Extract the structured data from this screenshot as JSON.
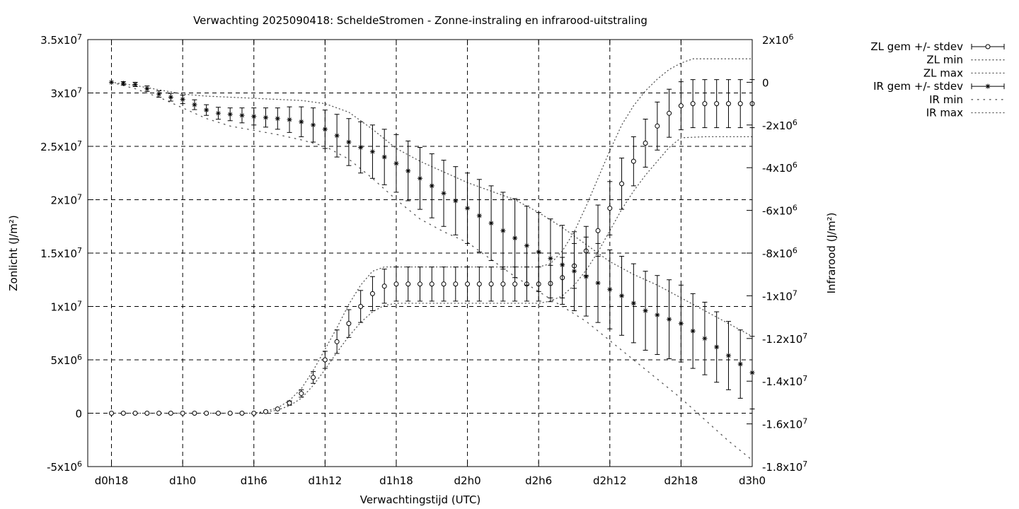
{
  "chart_data": {
    "type": "line",
    "title": "Verwachting 2025090418: ScheldeStromen - Zonne-instraling en infrarood-uitstraling",
    "xlabel": "Verwachtingstijd (UTC)",
    "ylabel_left": "Zonlicht (J/m²)",
    "ylabel_right": "Infrarood (J/m²)",
    "x_unit": "forecast hour since d0h0",
    "xlim": [
      16,
      72
    ],
    "x_ticks": [
      {
        "x": 18,
        "label": "d0h18"
      },
      {
        "x": 24,
        "label": "d1h0"
      },
      {
        "x": 30,
        "label": "d1h6"
      },
      {
        "x": 36,
        "label": "d1h12"
      },
      {
        "x": 42,
        "label": "d1h18"
      },
      {
        "x": 48,
        "label": "d2h0"
      },
      {
        "x": 54,
        "label": "d2h6"
      },
      {
        "x": 60,
        "label": "d2h12"
      },
      {
        "x": 66,
        "label": "d2h18"
      },
      {
        "x": 72,
        "label": "d3h0"
      }
    ],
    "ylim_left": [
      -5000000,
      35000000
    ],
    "y_ticks_left": [
      {
        "v": -5000000,
        "base": "-5x10",
        "exp": "6"
      },
      {
        "v": 0,
        "base": "0",
        "exp": ""
      },
      {
        "v": 5000000,
        "base": "5x10",
        "exp": "6"
      },
      {
        "v": 10000000,
        "base": "1x10",
        "exp": "7"
      },
      {
        "v": 15000000,
        "base": "1.5x10",
        "exp": "7"
      },
      {
        "v": 20000000,
        "base": "2x10",
        "exp": "7"
      },
      {
        "v": 25000000,
        "base": "2.5x10",
        "exp": "7"
      },
      {
        "v": 30000000,
        "base": "3x10",
        "exp": "7"
      },
      {
        "v": 35000000,
        "base": "3.5x10",
        "exp": "7"
      }
    ],
    "ylim_right": [
      -18000000,
      2000000
    ],
    "y_ticks_right": [
      {
        "v": 2000000,
        "base": "2x10",
        "exp": "6"
      },
      {
        "v": 0,
        "base": "0",
        "exp": ""
      },
      {
        "v": -2000000,
        "base": "-2x10",
        "exp": "6"
      },
      {
        "v": -4000000,
        "base": "-4x10",
        "exp": "6"
      },
      {
        "v": -6000000,
        "base": "-6x10",
        "exp": "6"
      },
      {
        "v": -8000000,
        "base": "-8x10",
        "exp": "6"
      },
      {
        "v": -10000000,
        "base": "-1x10",
        "exp": "7"
      },
      {
        "v": -12000000,
        "base": "-1.2x10",
        "exp": "7"
      },
      {
        "v": -14000000,
        "base": "-1.4x10",
        "exp": "7"
      },
      {
        "v": -16000000,
        "base": "-1.6x10",
        "exp": "7"
      },
      {
        "v": -18000000,
        "base": "-1.8x10",
        "exp": "7"
      }
    ],
    "grid": true,
    "legend_position": "outside-top-right",
    "legend": [
      {
        "name": "ZL gem +/- stdev",
        "style": "errorbar-circle"
      },
      {
        "name": "ZL min",
        "style": "dotted"
      },
      {
        "name": "ZL max",
        "style": "dotted"
      },
      {
        "name": "IR gem +/- stdev",
        "style": "errorbar-star"
      },
      {
        "name": "IR min",
        "style": "dotted-sparse"
      },
      {
        "name": "IR max",
        "style": "dotted"
      }
    ],
    "series": [
      {
        "name": "ZL gem +/- stdev",
        "axis": "left",
        "marker": "circle",
        "x": [
          18,
          19,
          20,
          21,
          22,
          23,
          24,
          25,
          26,
          27,
          28,
          29,
          30,
          31,
          32,
          33,
          34,
          35,
          36,
          37,
          38,
          39,
          40,
          41,
          42,
          43,
          44,
          45,
          46,
          47,
          48,
          49,
          50,
          51,
          52,
          53,
          54,
          55,
          56,
          57,
          58,
          59,
          60,
          61,
          62,
          63,
          64,
          65,
          66,
          67,
          68,
          69,
          70,
          71,
          72
        ],
        "y": [
          0,
          0,
          0,
          0,
          0,
          0,
          0,
          0,
          0,
          0,
          0,
          0,
          0,
          150000,
          400000,
          950000,
          1850000,
          3350000,
          5000000,
          6700000,
          8400000,
          10000000,
          11200000,
          11900000,
          12100000,
          12100000,
          12100000,
          12100000,
          12100000,
          12100000,
          12100000,
          12100000,
          12100000,
          12100000,
          12100000,
          12100000,
          12100000,
          12150000,
          12700000,
          13800000,
          15200000,
          17100000,
          19200000,
          21500000,
          23600000,
          25300000,
          26900000,
          28100000,
          28800000,
          29000000,
          29000000,
          29000000,
          29000000,
          29000000,
          29000000
        ],
        "err": [
          0,
          0,
          0,
          0,
          0,
          0,
          0,
          0,
          0,
          0,
          0,
          0,
          0,
          0,
          0,
          200000,
          350000,
          550000,
          800000,
          1100000,
          1300000,
          1500000,
          1600000,
          1600000,
          1600000,
          1600000,
          1600000,
          1600000,
          1600000,
          1600000,
          1600000,
          1600000,
          1600000,
          1600000,
          1600000,
          1600000,
          1600000,
          1700000,
          1900000,
          2100000,
          2300000,
          2400000,
          2500000,
          2400000,
          2300000,
          2250000,
          2250000,
          2250000,
          2250000,
          2250000,
          2250000,
          2250000,
          2250000,
          2250000,
          2250000
        ]
      },
      {
        "name": "ZL min",
        "axis": "left",
        "x": [
          18,
          24,
          30,
          31,
          32,
          33,
          34,
          35,
          36,
          37,
          38,
          39,
          40,
          41,
          42,
          44,
          48,
          54,
          55,
          56,
          57,
          58,
          59,
          60,
          61,
          62,
          63,
          64,
          65,
          66,
          68,
          72
        ],
        "y": [
          0,
          0,
          0,
          100000,
          300000,
          700000,
          1400000,
          2600000,
          4100000,
          5700000,
          7200000,
          8500000,
          9500000,
          10100000,
          10300000,
          10300000,
          10300000,
          10300000,
          10500000,
          11000000,
          12000000,
          13400000,
          15100000,
          17100000,
          19100000,
          20800000,
          22300000,
          23600000,
          24900000,
          25800000,
          25900000,
          25900000
        ]
      },
      {
        "name": "ZL max",
        "axis": "left",
        "x": [
          18,
          24,
          30,
          31,
          32,
          33,
          34,
          35,
          36,
          37,
          38,
          39,
          40,
          41,
          42,
          44,
          48,
          54,
          55,
          56,
          57,
          58,
          59,
          60,
          61,
          62,
          63,
          64,
          65,
          66,
          67,
          68,
          72
        ],
        "y": [
          0,
          0,
          0,
          200000,
          500000,
          1200000,
          2300000,
          4000000,
          6000000,
          8000000,
          10200000,
          12000000,
          13300000,
          13700000,
          13700000,
          13700000,
          13700000,
          13700000,
          14000000,
          15200000,
          17000000,
          19400000,
          22000000,
          24600000,
          27000000,
          28800000,
          30200000,
          31300000,
          32200000,
          32800000,
          33200000,
          33200000,
          33200000
        ]
      },
      {
        "name": "IR gem +/- stdev",
        "axis": "right",
        "marker": "star",
        "x": [
          18,
          19,
          20,
          21,
          22,
          23,
          24,
          25,
          26,
          27,
          28,
          29,
          30,
          31,
          32,
          33,
          34,
          35,
          36,
          37,
          38,
          39,
          40,
          41,
          42,
          43,
          44,
          45,
          46,
          47,
          48,
          49,
          50,
          51,
          52,
          53,
          54,
          55,
          56,
          57,
          58,
          59,
          60,
          61,
          62,
          63,
          64,
          65,
          66,
          67,
          68,
          69,
          70,
          71,
          72
        ],
        "y": [
          0,
          -50000,
          -100000,
          -300000,
          -550000,
          -700000,
          -800000,
          -1050000,
          -1300000,
          -1450000,
          -1500000,
          -1550000,
          -1600000,
          -1650000,
          -1700000,
          -1750000,
          -1850000,
          -2000000,
          -2200000,
          -2500000,
          -2800000,
          -3050000,
          -3250000,
          -3500000,
          -3800000,
          -4150000,
          -4500000,
          -4850000,
          -5200000,
          -5550000,
          -5900000,
          -6250000,
          -6600000,
          -6950000,
          -7300000,
          -7650000,
          -7950000,
          -8250000,
          -8550000,
          -8850000,
          -9100000,
          -9400000,
          -9700000,
          -10000000,
          -10350000,
          -10700000,
          -10900000,
          -11100000,
          -11300000,
          -11650000,
          -12000000,
          -12400000,
          -12800000,
          -13200000,
          -13600000
        ],
        "err": [
          0,
          80000,
          100000,
          130000,
          150000,
          180000,
          200000,
          230000,
          250000,
          280000,
          300000,
          350000,
          400000,
          450000,
          500000,
          600000,
          700000,
          800000,
          900000,
          1000000,
          1100000,
          1200000,
          1250000,
          1300000,
          1350000,
          1400000,
          1450000,
          1500000,
          1550000,
          1600000,
          1650000,
          1700000,
          1750000,
          1800000,
          1850000,
          1850000,
          1850000,
          1850000,
          1850000,
          1850000,
          1850000,
          1850000,
          1850000,
          1850000,
          1850000,
          1850000,
          1850000,
          1850000,
          1800000,
          1750000,
          1700000,
          1650000,
          1600000,
          1600000,
          1700000
        ]
      },
      {
        "name": "IR min",
        "axis": "right",
        "x": [
          18,
          20,
          22,
          24,
          26,
          28,
          30,
          32,
          34,
          36,
          38,
          40,
          42,
          44,
          46,
          48,
          50,
          52,
          54,
          56,
          58,
          60,
          62,
          64,
          66,
          68,
          70,
          72
        ],
        "y": [
          0,
          -300000,
          -700000,
          -1200000,
          -1700000,
          -2050000,
          -2250000,
          -2450000,
          -2700000,
          -3000000,
          -3600000,
          -4500000,
          -5500000,
          -6400000,
          -7000000,
          -7500000,
          -8300000,
          -9100000,
          -9800000,
          -10500000,
          -11200000,
          -12100000,
          -13000000,
          -13900000,
          -14800000,
          -15800000,
          -16800000,
          -17700000
        ]
      },
      {
        "name": "IR max",
        "axis": "right",
        "x": [
          18,
          20,
          22,
          24,
          26,
          28,
          30,
          32,
          34,
          36,
          38,
          40,
          42,
          44,
          46,
          48,
          50,
          52,
          54,
          56,
          58,
          60,
          62,
          64,
          66,
          68,
          70,
          72
        ],
        "y": [
          0,
          -150000,
          -350000,
          -550000,
          -650000,
          -700000,
          -750000,
          -800000,
          -850000,
          -1000000,
          -1400000,
          -2200000,
          -3100000,
          -3700000,
          -4200000,
          -4700000,
          -5100000,
          -5500000,
          -6100000,
          -6800000,
          -7600000,
          -8400000,
          -9000000,
          -9500000,
          -10100000,
          -10700000,
          -11300000,
          -11900000
        ]
      }
    ]
  }
}
